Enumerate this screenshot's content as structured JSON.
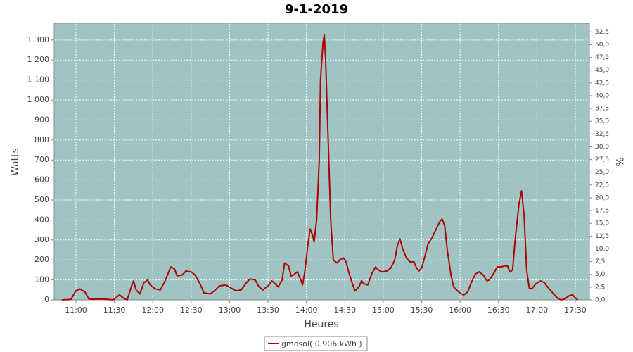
{
  "chart_data": {
    "type": "line",
    "title": "9-1-2019",
    "x_label": "Heures",
    "y_label": "Watts",
    "y2_label": "%",
    "plot_background": "#a0c4c4",
    "grid": true,
    "legend": "bottom",
    "xlim": [
      643,
      1061
    ],
    "xticks": [
      {
        "value": 660,
        "label": "11:00"
      },
      {
        "value": 690,
        "label": "11:30"
      },
      {
        "value": 720,
        "label": "12:00"
      },
      {
        "value": 750,
        "label": "12:30"
      },
      {
        "value": 780,
        "label": "13:00"
      },
      {
        "value": 810,
        "label": "13:30"
      },
      {
        "value": 840,
        "label": "14:00"
      },
      {
        "value": 870,
        "label": "14:30"
      },
      {
        "value": 900,
        "label": "15:00"
      },
      {
        "value": 930,
        "label": "15:30"
      },
      {
        "value": 960,
        "label": "16:00"
      },
      {
        "value": 990,
        "label": "16:30"
      },
      {
        "value": 1020,
        "label": "17:00"
      },
      {
        "value": 1050,
        "label": "17:30"
      }
    ],
    "ylim": [
      0,
      1384
    ],
    "yticks": [
      0,
      100,
      200,
      300,
      400,
      500,
      600,
      700,
      800,
      900,
      {
        "value": 1000,
        "label": "1 000"
      },
      {
        "value": 1100,
        "label": "1 100"
      },
      {
        "value": 1200,
        "label": "1 200"
      },
      {
        "value": 1300,
        "label": "1 300"
      }
    ],
    "y2lim": [
      0,
      54.2
    ],
    "y2ticks": [
      {
        "value": 0,
        "label": "0,0"
      },
      {
        "value": 2.5,
        "label": "2,5"
      },
      {
        "value": 5,
        "label": "5,0"
      },
      {
        "value": 7.5,
        "label": "7,5"
      },
      {
        "value": 10,
        "label": "10,0"
      },
      {
        "value": 12.5,
        "label": "12,5"
      },
      {
        "value": 15,
        "label": "15,0"
      },
      {
        "value": 17.5,
        "label": "17,5"
      },
      {
        "value": 20,
        "label": "20,0"
      },
      {
        "value": 22.5,
        "label": "22,5"
      },
      {
        "value": 25,
        "label": "25,0"
      },
      {
        "value": 27.5,
        "label": "27,5"
      },
      {
        "value": 30,
        "label": "30,0"
      },
      {
        "value": 32.5,
        "label": "32,5"
      },
      {
        "value": 35,
        "label": "35,0"
      },
      {
        "value": 37.5,
        "label": "37,5"
      },
      {
        "value": 40,
        "label": "40,0"
      },
      {
        "value": 42.5,
        "label": "42,5"
      },
      {
        "value": 45,
        "label": "45,0"
      },
      {
        "value": 47.5,
        "label": "47,5"
      },
      {
        "value": 50,
        "label": "50,0"
      },
      {
        "value": 52.5,
        "label": "52,5"
      }
    ],
    "x": [
      649,
      656,
      660,
      663,
      667,
      670,
      673,
      678,
      684,
      689,
      694,
      697,
      700,
      703,
      705,
      707,
      710,
      713,
      716,
      718,
      722,
      726,
      730,
      734,
      737,
      739,
      743,
      746,
      750,
      753,
      757,
      760,
      765,
      769,
      772,
      777,
      781,
      785,
      789,
      793,
      796,
      800,
      803,
      806,
      810,
      813,
      815,
      818,
      821,
      823,
      826,
      828,
      830,
      833,
      835,
      837,
      839,
      841,
      843,
      845,
      846,
      848,
      850,
      851,
      853,
      854,
      855,
      857,
      859,
      861,
      864,
      866,
      869,
      871,
      873,
      876,
      878,
      881,
      883,
      885,
      888,
      891,
      894,
      896,
      899,
      903,
      906,
      909,
      911,
      913,
      915,
      918,
      921,
      924,
      926,
      928,
      930,
      933,
      935,
      938,
      941,
      944,
      946,
      948,
      950,
      953,
      955,
      958,
      961,
      963,
      966,
      969,
      972,
      975,
      978,
      981,
      983,
      986,
      989,
      992,
      995,
      997,
      999,
      1001,
      1003,
      1006,
      1008,
      1010,
      1012,
      1014,
      1016,
      1019,
      1023,
      1026,
      1029,
      1033,
      1036,
      1039,
      1042,
      1045,
      1048,
      1050,
      1052
    ],
    "series": [
      {
        "name": "gmosol( 0,906 kWh )",
        "color": "#b00000",
        "values": [
          0,
          2,
          45,
          55,
          40,
          5,
          3,
          5,
          3,
          0,
          25,
          10,
          0,
          60,
          95,
          50,
          30,
          85,
          100,
          75,
          55,
          50,
          100,
          165,
          155,
          120,
          125,
          145,
          140,
          125,
          80,
          35,
          30,
          50,
          70,
          75,
          60,
          45,
          50,
          85,
          105,
          100,
          65,
          50,
          70,
          95,
          85,
          65,
          100,
          185,
          170,
          120,
          125,
          140,
          110,
          75,
          150,
          270,
          355,
          320,
          290,
          400,
          700,
          1100,
          1290,
          1325,
          1200,
          800,
          400,
          200,
          185,
          200,
          210,
          190,
          140,
          80,
          45,
          65,
          95,
          80,
          75,
          130,
          165,
          150,
          140,
          145,
          160,
          200,
          270,
          305,
          260,
          210,
          190,
          190,
          160,
          145,
          160,
          230,
          280,
          310,
          350,
          390,
          405,
          370,
          250,
          120,
          65,
          45,
          30,
          25,
          40,
          90,
          130,
          140,
          125,
          95,
          100,
          130,
          165,
          165,
          170,
          170,
          140,
          150,
          300,
          480,
          545,
          420,
          150,
          60,
          55,
          80,
          95,
          85,
          60,
          30,
          10,
          0,
          5,
          20,
          25,
          10,
          0
        ]
      }
    ]
  }
}
